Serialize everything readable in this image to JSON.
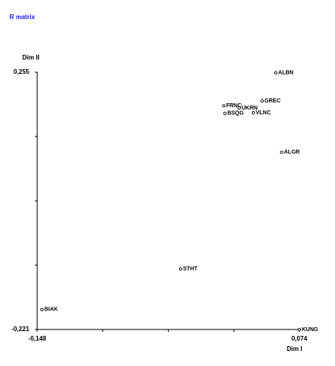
{
  "chart_data": {
    "type": "scatter",
    "title": "R matrix",
    "x_label": "Dim I",
    "y_label": "Dim II",
    "xlim": [
      -0.148,
      0.074
    ],
    "ylim": [
      -0.221,
      0.255
    ],
    "xticks": [
      {
        "value": -0.148,
        "label": "-0,148"
      },
      {
        "value": 0.074,
        "label": "0,074"
      }
    ],
    "yticks": [
      {
        "value": -0.221,
        "label": "-0,221"
      },
      {
        "value": 0.255,
        "label": "0,255"
      }
    ],
    "color": "#000000",
    "points": [
      {
        "label": "ALBN",
        "x": 0.054,
        "y": 0.254
      },
      {
        "label": "GREC",
        "x": 0.0425,
        "y": 0.202
      },
      {
        "label": "FRNC",
        "x": 0.01,
        "y": 0.193
      },
      {
        "label": "UKRN",
        "x": 0.023,
        "y": 0.189
      },
      {
        "label": "BSQG",
        "x": 0.011,
        "y": 0.179
      },
      {
        "label": "VLNC",
        "x": 0.035,
        "y": 0.18
      },
      {
        "label": "ALGR",
        "x": 0.059,
        "y": 0.107
      },
      {
        "label": "STHT",
        "x": -0.0266,
        "y": -0.109
      },
      {
        "label": "BIAK",
        "x": -0.144,
        "y": -0.184
      },
      {
        "label": "KUNG",
        "x": 0.074,
        "y": -0.221
      }
    ]
  }
}
